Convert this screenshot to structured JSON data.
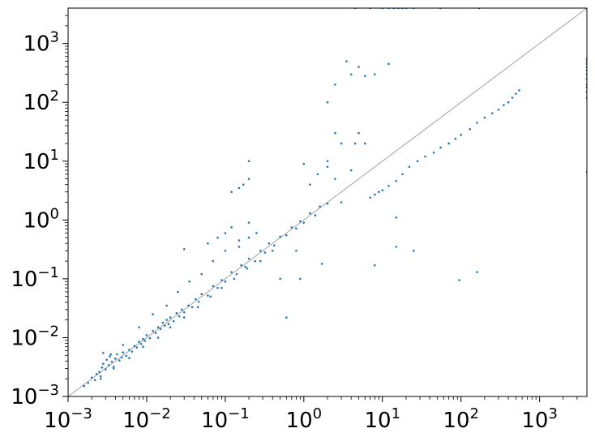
{
  "chart_data": {
    "type": "scatter",
    "title": "",
    "xlabel": "",
    "ylabel": "",
    "xscale": "log",
    "yscale": "log",
    "xlim": [
      0.001,
      4000
    ],
    "ylim": [
      0.001,
      4000
    ],
    "grid": false,
    "reference_line": "y = x",
    "colors": {
      "points": "#1f77b4",
      "reference_line": "#999999",
      "axes": "#000000"
    },
    "xticks": [
      {
        "value": 0.001,
        "base": "10",
        "exp": "−3"
      },
      {
        "value": 0.01,
        "base": "10",
        "exp": "−2"
      },
      {
        "value": 0.1,
        "base": "10",
        "exp": "−1"
      },
      {
        "value": 1,
        "base": "10",
        "exp": "0"
      },
      {
        "value": 10,
        "base": "10",
        "exp": "1"
      },
      {
        "value": 100,
        "base": "10",
        "exp": "2"
      },
      {
        "value": 1000,
        "base": "10",
        "exp": "3"
      }
    ],
    "yticks": [
      {
        "value": 0.001,
        "base": "10",
        "exp": "−3"
      },
      {
        "value": 0.01,
        "base": "10",
        "exp": "−2"
      },
      {
        "value": 0.1,
        "base": "10",
        "exp": "−1"
      },
      {
        "value": 1,
        "base": "10",
        "exp": "0"
      },
      {
        "value": 10,
        "base": "10",
        "exp": "1"
      },
      {
        "value": 100,
        "base": "10",
        "exp": "2"
      },
      {
        "value": 1000,
        "base": "10",
        "exp": "3"
      }
    ],
    "series": [
      {
        "points": [
          [
            0.0016,
            0.0015
          ],
          [
            0.0018,
            0.0017
          ],
          [
            0.002,
            0.0021
          ],
          [
            0.0022,
            0.0019
          ],
          [
            0.0023,
            0.0024
          ],
          [
            0.0025,
            0.0026
          ],
          [
            0.0026,
            0.0022
          ],
          [
            0.0027,
            0.0031
          ],
          [
            0.0028,
            0.0036
          ],
          [
            0.003,
            0.0029
          ],
          [
            0.0031,
            0.0042
          ],
          [
            0.0033,
            0.0034
          ],
          [
            0.0034,
            0.0048
          ],
          [
            0.0036,
            0.0039
          ],
          [
            0.0038,
            0.0032
          ],
          [
            0.004,
            0.0044
          ],
          [
            0.0042,
            0.0052
          ],
          [
            0.0045,
            0.0041
          ],
          [
            0.0048,
            0.0046
          ],
          [
            0.005,
            0.0056
          ],
          [
            0.0055,
            0.0049
          ],
          [
            0.006,
            0.0062
          ],
          [
            0.0065,
            0.0058
          ],
          [
            0.007,
            0.0072
          ],
          [
            0.0075,
            0.0068
          ],
          [
            0.008,
            0.0085
          ],
          [
            0.0085,
            0.0078
          ],
          [
            0.009,
            0.0095
          ],
          [
            0.0095,
            0.0088
          ],
          [
            0.01,
            0.011
          ],
          [
            0.011,
            0.0098
          ],
          [
            0.012,
            0.013
          ],
          [
            0.013,
            0.012
          ],
          [
            0.014,
            0.015
          ],
          [
            0.015,
            0.014
          ],
          [
            0.016,
            0.018
          ],
          [
            0.017,
            0.016
          ],
          [
            0.018,
            0.02
          ],
          [
            0.019,
            0.017
          ],
          [
            0.02,
            0.022
          ],
          [
            0.022,
            0.019
          ],
          [
            0.024,
            0.026
          ],
          [
            0.026,
            0.023
          ],
          [
            0.028,
            0.03
          ],
          [
            0.03,
            0.027
          ],
          [
            0.034,
            0.035
          ],
          [
            0.038,
            0.033
          ],
          [
            0.042,
            0.045
          ],
          [
            0.046,
            0.041
          ],
          [
            0.05,
            0.055
          ],
          [
            0.06,
            0.052
          ],
          [
            0.07,
            0.075
          ],
          [
            0.08,
            0.07
          ],
          [
            0.09,
            0.095
          ],
          [
            0.1,
            0.09
          ],
          [
            0.12,
            0.13
          ],
          [
            0.14,
            0.12
          ],
          [
            0.16,
            0.17
          ],
          [
            0.18,
            0.16
          ],
          [
            0.2,
            0.22
          ],
          [
            0.24,
            0.2
          ],
          [
            0.28,
            0.3
          ],
          [
            0.32,
            0.28
          ],
          [
            0.36,
            0.4
          ],
          [
            0.42,
            0.37
          ],
          [
            0.5,
            0.52
          ],
          [
            0.6,
            0.55
          ],
          [
            0.7,
            0.75
          ],
          [
            0.8,
            0.72
          ],
          [
            0.9,
            0.95
          ],
          [
            1.0,
            0.9
          ],
          [
            1.2,
            1.3
          ],
          [
            1.4,
            1.2
          ],
          [
            1.6,
            1.7
          ],
          [
            2.0,
            1.9
          ],
          [
            0.0028,
            0.0055
          ],
          [
            0.0035,
            0.0052
          ],
          [
            0.005,
            0.0075
          ],
          [
            0.008,
            0.015
          ],
          [
            0.012,
            0.025
          ],
          [
            0.018,
            0.035
          ],
          [
            0.025,
            0.06
          ],
          [
            0.035,
            0.09
          ],
          [
            0.05,
            0.12
          ],
          [
            0.07,
            0.2
          ],
          [
            0.1,
            0.3
          ],
          [
            0.15,
            0.35
          ],
          [
            0.2,
            0.5
          ],
          [
            0.25,
            0.6
          ],
          [
            0.0026,
            0.002
          ],
          [
            0.0038,
            0.003
          ],
          [
            0.006,
            0.0045
          ],
          [
            0.009,
            0.007
          ],
          [
            0.014,
            0.01
          ],
          [
            0.02,
            0.015
          ],
          [
            0.03,
            0.022
          ],
          [
            0.045,
            0.033
          ],
          [
            0.065,
            0.05
          ],
          [
            0.09,
            0.07
          ],
          [
            0.13,
            0.1
          ],
          [
            0.19,
            0.15
          ],
          [
            0.28,
            0.2
          ],
          [
            0.4,
            0.3
          ],
          [
            0.06,
            0.4
          ],
          [
            0.08,
            0.5
          ],
          [
            0.1,
            0.6
          ],
          [
            0.12,
            0.75
          ],
          [
            0.15,
            0.45
          ],
          [
            0.2,
            0.9
          ],
          [
            0.12,
            3.0
          ],
          [
            0.15,
            3.5
          ],
          [
            0.17,
            4.0
          ],
          [
            0.2,
            5.0
          ],
          [
            0.2,
            10.0
          ],
          [
            0.03,
            0.32
          ],
          [
            0.5,
            0.1
          ],
          [
            0.6,
            0.022
          ],
          [
            0.8,
            0.3
          ],
          [
            0.9,
            0.1
          ],
          [
            1.0,
            9.0
          ],
          [
            1.2,
            4.0
          ],
          [
            1.5,
            6.0
          ],
          [
            1.7,
            0.18
          ],
          [
            2.0,
            10.0
          ],
          [
            2.5,
            5.0
          ],
          [
            3.0,
            20.0
          ],
          [
            3.0,
            2.0
          ],
          [
            2.0,
            100.0
          ],
          [
            2.5,
            200.0
          ],
          [
            3.5,
            500.0
          ],
          [
            4.0,
            300.0
          ],
          [
            5.0,
            400.0
          ],
          [
            4.5,
            20.0
          ],
          [
            6.0,
            280.0
          ],
          [
            8.0,
            300.0
          ],
          [
            12.0,
            450.0
          ],
          [
            2.0,
            8.0
          ],
          [
            4.0,
            7.0
          ],
          [
            5.0,
            30.0
          ],
          [
            6.0,
            20.0
          ],
          [
            2.5,
            30.0
          ],
          [
            7.0,
            2.4
          ],
          [
            8.0,
            2.7
          ],
          [
            9.0,
            3.0
          ],
          [
            10.0,
            3.2
          ],
          [
            12.0,
            3.8
          ],
          [
            15.0,
            4.6
          ],
          [
            18.0,
            6.0
          ],
          [
            22.0,
            8.0
          ],
          [
            28.0,
            10.0
          ],
          [
            35.0,
            12.0
          ],
          [
            45.0,
            14.0
          ],
          [
            55.0,
            17.0
          ],
          [
            70.0,
            20.0
          ],
          [
            85.0,
            24.0
          ],
          [
            100.0,
            28.0
          ],
          [
            130.0,
            35.0
          ],
          [
            160.0,
            45.0
          ],
          [
            200.0,
            55.0
          ],
          [
            250.0,
            65.0
          ],
          [
            300.0,
            75.0
          ],
          [
            350.0,
            90.0
          ],
          [
            400.0,
            100.0
          ],
          [
            450.0,
            120.0
          ],
          [
            500.0,
            140.0
          ],
          [
            550.0,
            160.0
          ],
          [
            15.0,
            1.1
          ],
          [
            15.0,
            0.35
          ],
          [
            25.0,
            0.3
          ],
          [
            8.0,
            0.17
          ],
          [
            95.0,
            0.095
          ],
          [
            160.0,
            0.13
          ],
          [
            7.0,
            4000.0
          ],
          [
            10.0,
            4000.0
          ],
          [
            12.0,
            4000.0
          ],
          [
            14.0,
            4000.0
          ],
          [
            16.0,
            4000.0
          ],
          [
            18.0,
            4000.0
          ],
          [
            20.0,
            4000.0
          ],
          [
            25.0,
            4000.0
          ],
          [
            55.0,
            4000.0
          ],
          [
            170.0,
            4000.0
          ],
          [
            4.5,
            4000.0
          ],
          [
            4000.0,
            6.5
          ],
          [
            4000.0,
            120.0
          ],
          [
            4000.0,
            150.0
          ],
          [
            4000.0,
            180.0
          ],
          [
            4000.0,
            200.0
          ],
          [
            4000.0,
            250.0
          ],
          [
            4000.0,
            300.0
          ],
          [
            4000.0,
            350.0
          ],
          [
            4000.0,
            400.0
          ],
          [
            4000.0,
            450.0
          ],
          [
            4000.0,
            500.0
          ],
          [
            4000.0,
            550.0
          ]
        ]
      }
    ]
  }
}
